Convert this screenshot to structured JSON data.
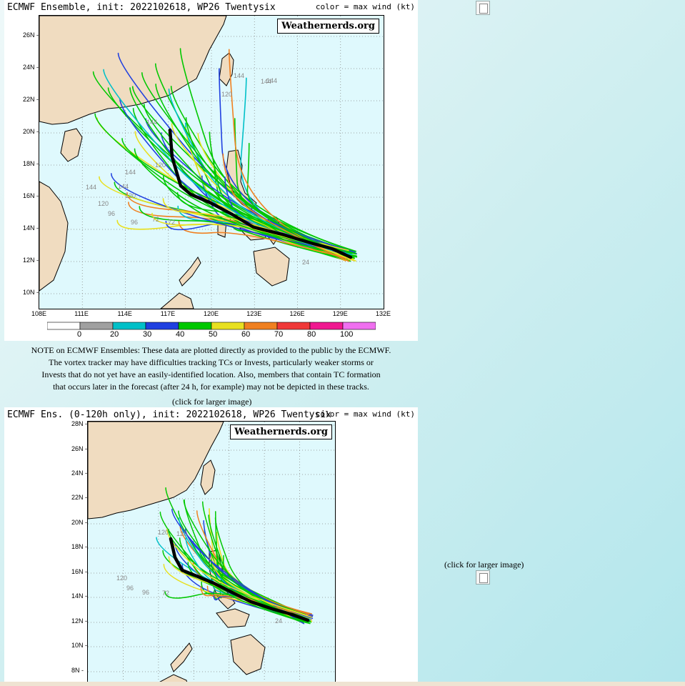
{
  "map1": {
    "title": "ECMWF Ensemble, init: 2022102618, WP26 Twentysix",
    "color_note": "color = max wind (kt)",
    "brand": "Weathernerds.org",
    "lat_labels": [
      "26N",
      "24N",
      "22N",
      "20N",
      "18N",
      "16N",
      "14N",
      "12N",
      "10N"
    ],
    "lon_labels": [
      "108E",
      "111E",
      "114E",
      "117E",
      "120E",
      "123E",
      "126E",
      "129E",
      "132E"
    ],
    "lat_range": [
      10,
      27
    ],
    "lon_range": [
      108,
      132
    ],
    "colorbar": {
      "labels": [
        "0",
        "20",
        "30",
        "40",
        "50",
        "60",
        "70",
        "80",
        "100"
      ],
      "colors": [
        "#ffffff",
        "#a0a0a0",
        "#00c0c8",
        "#2040e0",
        "#00c800",
        "#e8e020",
        "#f08020",
        "#f03838",
        "#f01890",
        "#f070f0"
      ]
    },
    "hour_labels": [
      "144",
      "144",
      "144",
      "144",
      "120",
      "120",
      "144",
      "144",
      "120",
      "96",
      "96",
      "72",
      "72",
      "144",
      "120",
      "24"
    ]
  },
  "note_lines": [
    "NOTE on ECMWF Ensembles: These data are plotted directly as provided to the public by the ECMWF.",
    "The vortex tracker may have difficulties tracking TCs or Invests, particularly weaker storms or",
    "Invests that do not yet have an easily-identified location. Also, members that contain TC formation",
    "that occurs later in the forecast (after 24 h, for example) may not be depicted in these tracks."
  ],
  "click_label_1": "(click for larger image)",
  "map2": {
    "title": "ECMWF Ens. (0-120h only), init: 2022102618, WP26 Twentysix",
    "color_note": "color = max wind (kt)",
    "brand": "Weathernerds.org",
    "lat_labels": [
      "28N",
      "26N",
      "24N",
      "22N",
      "20N",
      "18N",
      "16N",
      "14N",
      "12N",
      "10N",
      "8N"
    ],
    "lat_range": [
      8,
      28
    ],
    "lon_range": [
      112,
      132
    ],
    "hour_labels": [
      "120",
      "120",
      "120",
      "96",
      "96",
      "72",
      "24"
    ]
  },
  "click_label_2": "(click for larger image)",
  "colors": {
    "ocean": "#dff9fd",
    "land": "#f0dcc0",
    "mean_track": "#000000",
    "grid": "#888888"
  }
}
